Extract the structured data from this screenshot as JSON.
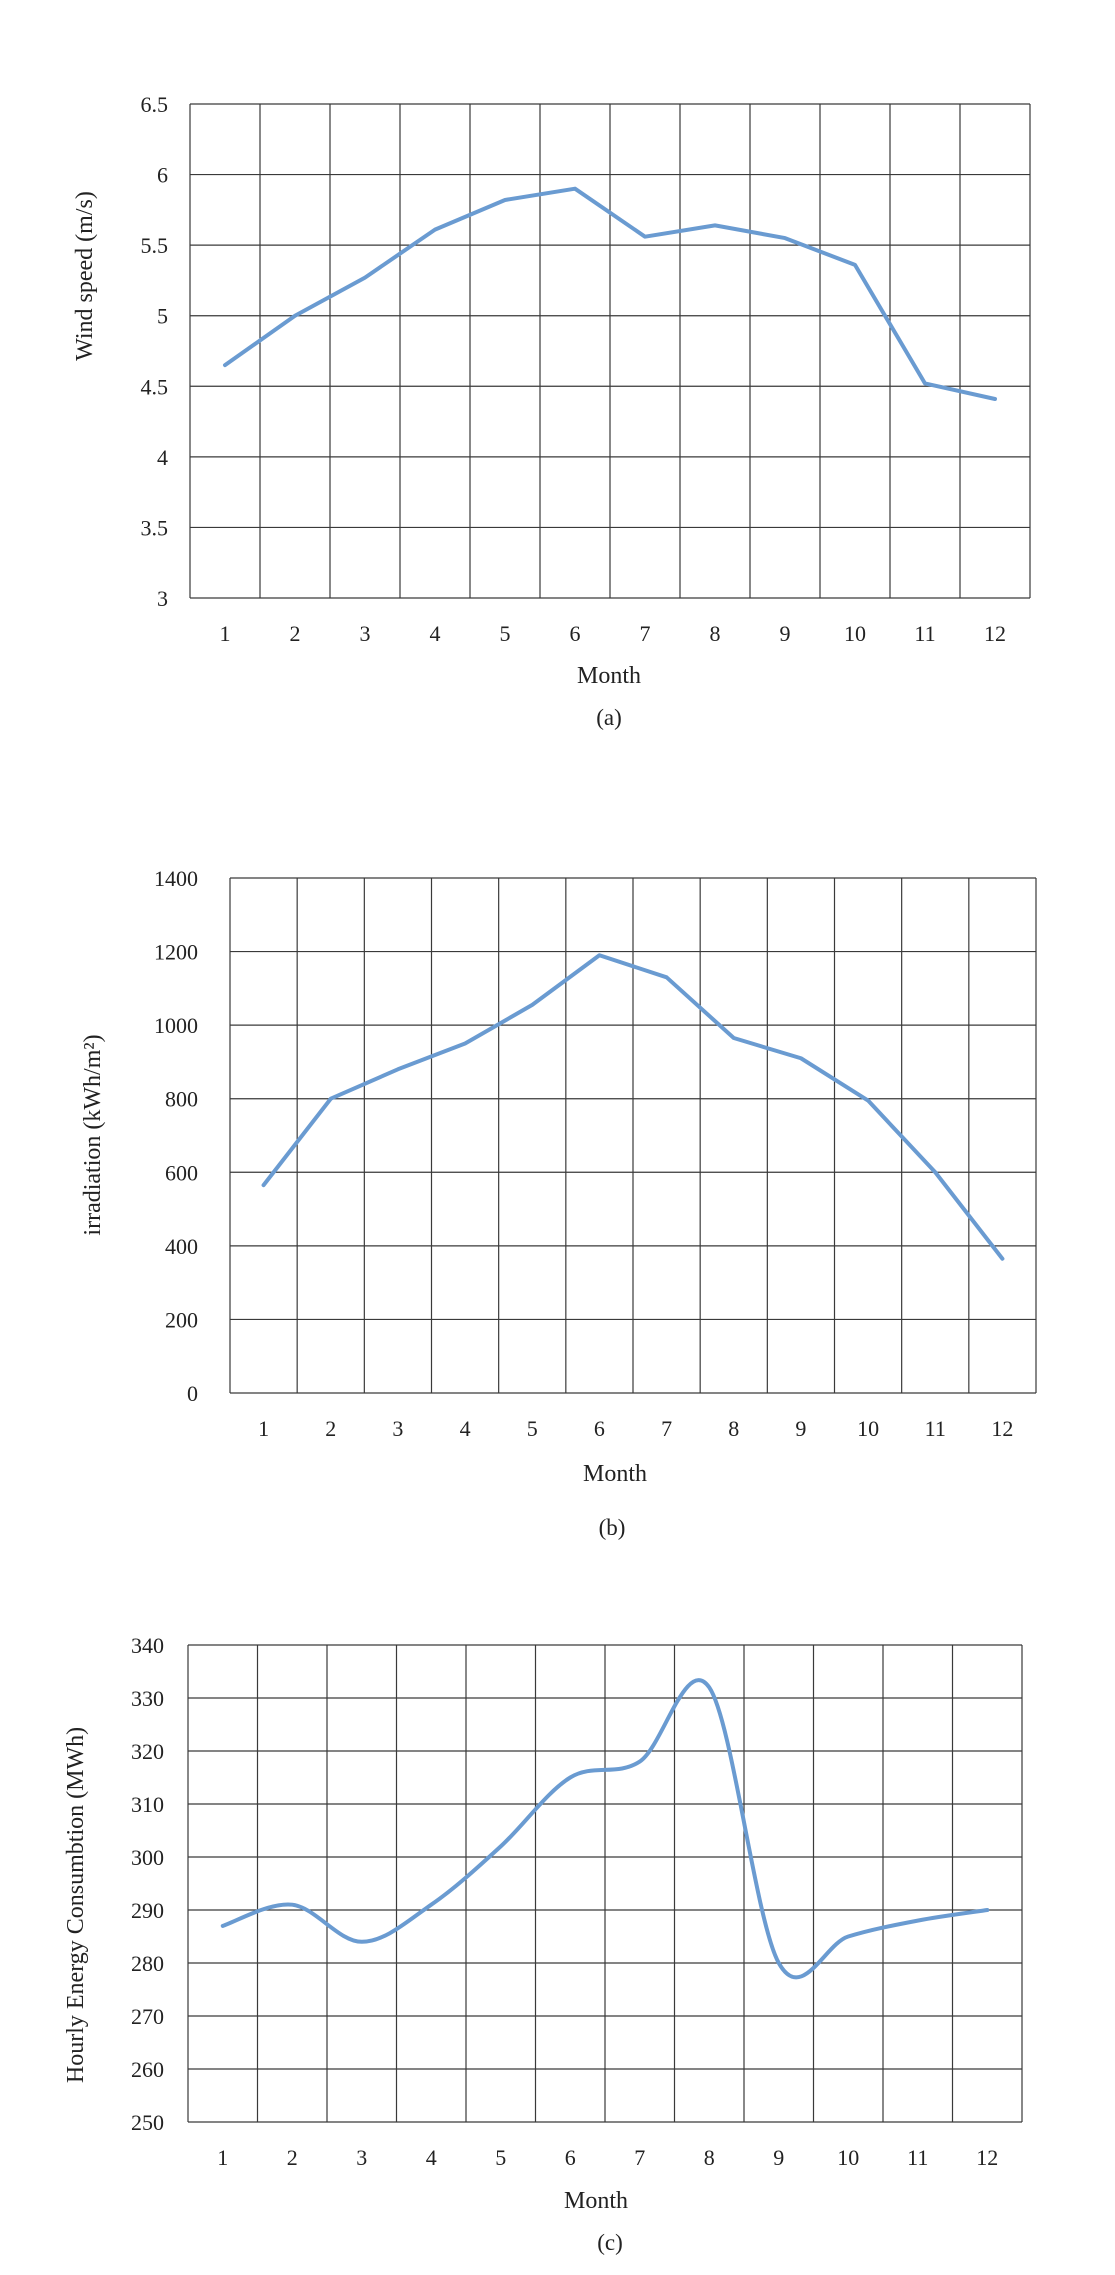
{
  "line_color": "#6a9bd1",
  "grid_color": "#3a3a3a",
  "chart_data": [
    {
      "type": "line",
      "categories": [
        "1",
        "2",
        "3",
        "4",
        "5",
        "6",
        "7",
        "8",
        "9",
        "10",
        "11",
        "12"
      ],
      "series": [
        {
          "values": [
            4.65,
            5.0,
            5.27,
            5.61,
            5.82,
            5.9,
            5.56,
            5.64,
            5.55,
            5.36,
            4.52,
            4.41
          ]
        }
      ],
      "ylim": [
        3,
        6.5
      ],
      "yticks": [
        "3",
        "3.5",
        "4",
        "4.5",
        "5",
        "5.5",
        "6",
        "6.5"
      ],
      "xlabel": "Month",
      "ylabel": "Wind speed (m/s)",
      "caption": "(a)",
      "grid": true,
      "smooth": false
    },
    {
      "type": "line",
      "categories": [
        "1",
        "2",
        "3",
        "4",
        "5",
        "6",
        "7",
        "8",
        "9",
        "10",
        "11",
        "12"
      ],
      "series": [
        {
          "values": [
            565,
            800,
            880,
            950,
            1055,
            1190,
            1130,
            965,
            910,
            795,
            600,
            365
          ]
        }
      ],
      "ylim": [
        0,
        1400
      ],
      "yticks": [
        "0",
        "200",
        "400",
        "600",
        "800",
        "1000",
        "1200",
        "1400"
      ],
      "xlabel": "Month",
      "ylabel": "irradiation (kWh/m²)",
      "caption": "(b)",
      "grid": true,
      "smooth": false
    },
    {
      "type": "line",
      "categories": [
        "1",
        "2",
        "3",
        "4",
        "5",
        "6",
        "7",
        "8",
        "9",
        "10",
        "11",
        "12"
      ],
      "series": [
        {
          "values": [
            287,
            291,
            284,
            291,
            302,
            315,
            318,
            332,
            280,
            285,
            288,
            290
          ]
        }
      ],
      "ylim": [
        250,
        340
      ],
      "yticks": [
        "250",
        "260",
        "270",
        "280",
        "290",
        "300",
        "310",
        "320",
        "330",
        "340"
      ],
      "xlabel": "Month",
      "ylabel": "Hourly Energy Consumbtion (MWh)",
      "caption": "(c)",
      "grid": true,
      "smooth": true
    }
  ]
}
